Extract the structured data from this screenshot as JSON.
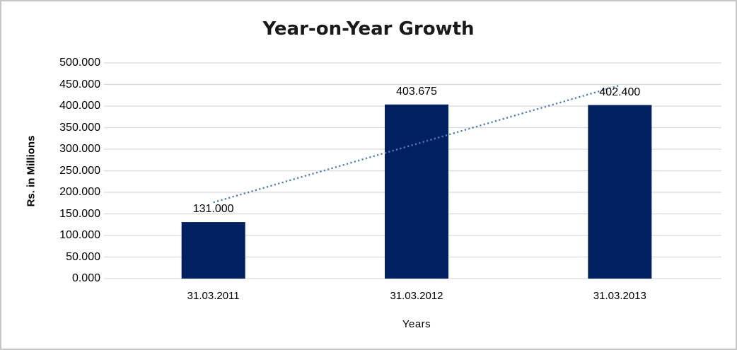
{
  "window": {
    "background": "#ffffff",
    "border_color": "#c6c6c6"
  },
  "chart_data": {
    "type": "bar",
    "title": "Year-on-Year Growth",
    "xlabel": "Years",
    "ylabel": "Rs. in Millions",
    "categories": [
      "31.03.2011",
      "31.03.2012",
      "31.03.2013"
    ],
    "values": [
      131.0,
      403.675,
      402.4
    ],
    "bar_labels": [
      "131.000",
      "403.675",
      "402.400"
    ],
    "ylim": [
      0,
      500
    ],
    "ytick_labels": [
      "0.000",
      "50.000",
      "100.000",
      "150.000",
      "200.000",
      "250.000",
      "300.000",
      "350.000",
      "400.000",
      "450.000",
      "500.000"
    ],
    "grid": "horizontal",
    "legend": "none",
    "bar_color": "#002060",
    "gridline_color": "#d9d9d9",
    "trendline": {
      "type": "linear",
      "style": "dotted",
      "color": "#4a7ebb"
    }
  }
}
